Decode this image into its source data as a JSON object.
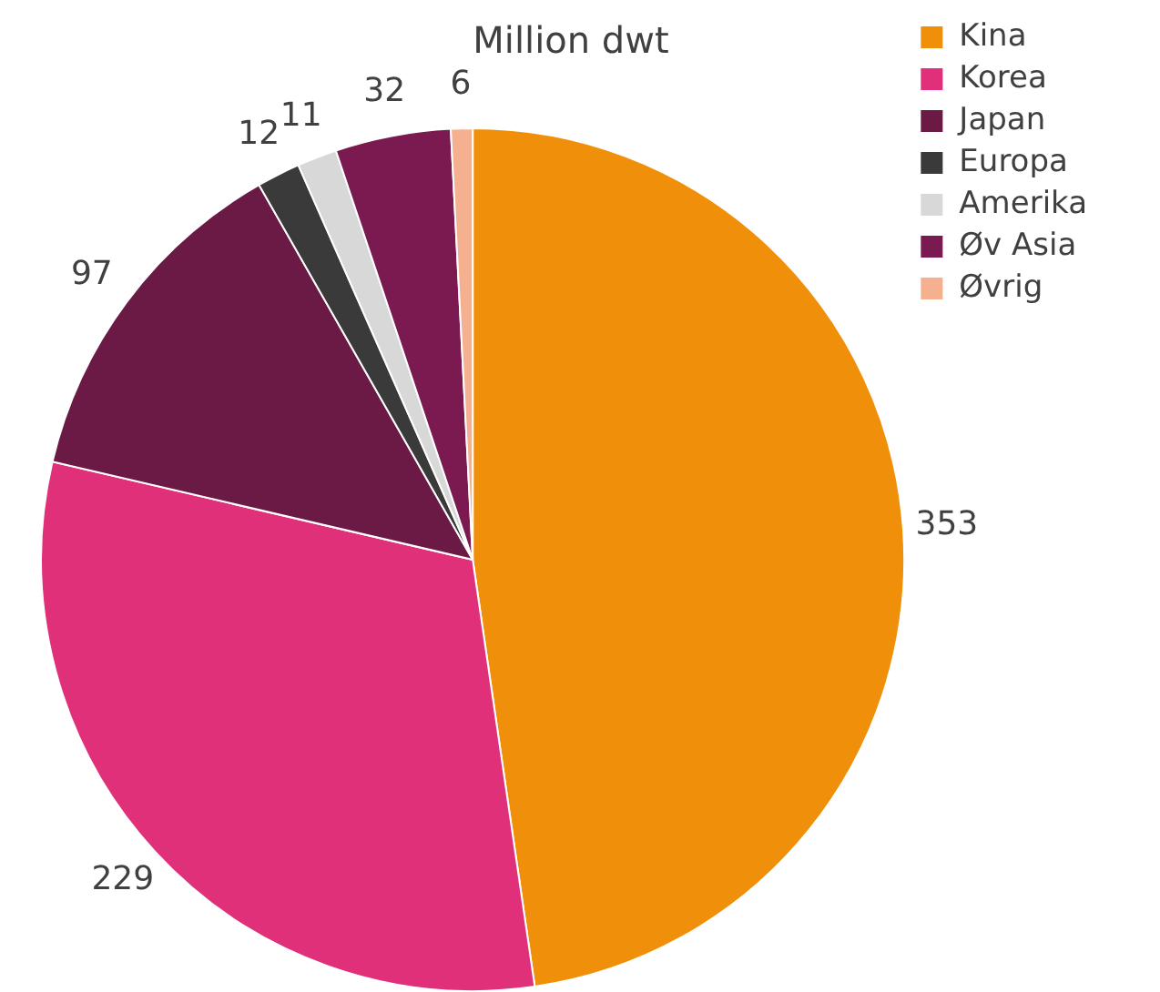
{
  "chart_data": {
    "type": "pie",
    "title": "Million dwt",
    "categories": [
      "Kina",
      "Korea",
      "Japan",
      "Europa",
      "Amerika",
      "Øv Asia",
      "Øvrig"
    ],
    "values": [
      353,
      229,
      97,
      12,
      11,
      32,
      6
    ],
    "colors": [
      "#f0900a",
      "#e0307a",
      "#6a1a45",
      "#3a3a3a",
      "#d8d8d8",
      "#7a1a50",
      "#f5b090"
    ],
    "data_labels": true,
    "legend": "top right"
  }
}
